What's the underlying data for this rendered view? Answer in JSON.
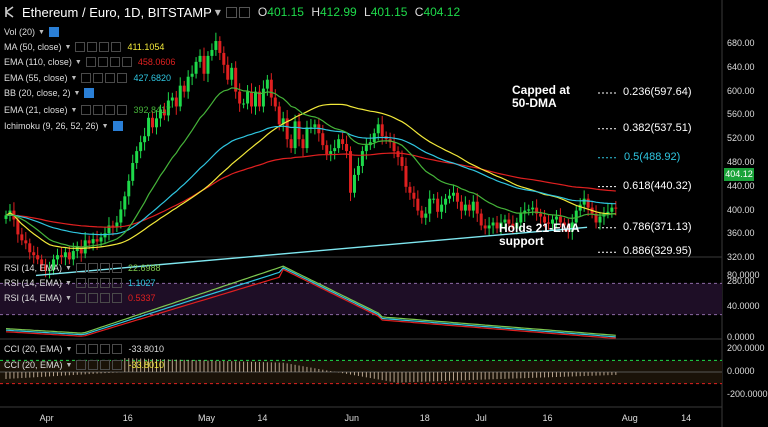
{
  "header": {
    "title": "Ethereum / Euro, 1D, BITSTAMP",
    "ohlc": [
      {
        "k": "O",
        "v": "401.15"
      },
      {
        "k": "H",
        "v": "412.99"
      },
      {
        "k": "L",
        "v": "401.15"
      },
      {
        "k": "C",
        "v": "404.12"
      }
    ]
  },
  "indicators": [
    {
      "label": "Vol (20)",
      "value": "",
      "color": "#dddddd",
      "toggle": true
    },
    {
      "label": "MA (50, close)",
      "value": "411.1054",
      "color": "#f2e93a",
      "toggle": false
    },
    {
      "label": "EMA (110, close)",
      "value": "458.0606",
      "color": "#e02020",
      "toggle": false
    },
    {
      "label": "EMA (55, close)",
      "value": "427.6820",
      "color": "#2fc6e0",
      "toggle": false
    },
    {
      "label": "BB (20, close, 2)",
      "value": "",
      "color": "#dddddd",
      "toggle": true
    },
    {
      "label": "EMA (21, close)",
      "value": "392.8417",
      "color": "#45b339",
      "toggle": false
    },
    {
      "label": "Ichimoku (9, 26, 52, 26)",
      "value": "",
      "color": "#dddddd",
      "toggle": true
    }
  ],
  "rsi_legend": [
    {
      "label": "RSI (14, EMA)",
      "value": "22.6988",
      "color": "#7ec850"
    },
    {
      "label": "RSI (14, EMA)",
      "value": "1.1027",
      "color": "#2fc6e0"
    },
    {
      "label": "RSI (14, EMA)",
      "value": "0.5337",
      "color": "#e02020"
    }
  ],
  "cci_legend": [
    {
      "label": "CCI (20, EMA)",
      "value": "-33.8010",
      "color": "#dddddd"
    },
    {
      "label": "CCI (20, EMA)",
      "value": "-33.8010",
      "color": "#f2e93a"
    }
  ],
  "last_price": "404.12",
  "annotations": {
    "capped_line1": "Capped at",
    "capped_line2": "50-DMA",
    "holds_line1": "Holds 21-EMA",
    "holds_line2": "support"
  },
  "chart_data": [
    {
      "type": "candlestick",
      "title": "Ethereum / Euro, 1D, BITSTAMP",
      "ylim": [
        260,
        700
      ],
      "yticks": [
        "680.00",
        "640.00",
        "600.00",
        "560.00",
        "520.00",
        "480.00",
        "440.00",
        "400.00",
        "360.00",
        "320.00",
        "280.00"
      ],
      "xticks": [
        "Apr",
        "16",
        "May",
        "14",
        "Jun",
        "18",
        "Jul",
        "16",
        "Aug",
        "14"
      ],
      "close": [
        392,
        400,
        385,
        360,
        350,
        345,
        330,
        325,
        318,
        308,
        300,
        300,
        318,
        325,
        322,
        330,
        318,
        332,
        340,
        328,
        350,
        345,
        352,
        348,
        355,
        362,
        375,
        372,
        380,
        402,
        424,
        450,
        480,
        500,
        515,
        525,
        556,
        540,
        555,
        570,
        560,
        585,
        590,
        575,
        610,
        600,
        625,
        630,
        650,
        660,
        630,
        660,
        670,
        685,
        665,
        645,
        620,
        640,
        600,
        580,
        580,
        600,
        575,
        600,
        575,
        605,
        620,
        590,
        575,
        545,
        555,
        520,
        505,
        550,
        520,
        505,
        540,
        540,
        545,
        530,
        510,
        495,
        500,
        505,
        520,
        512,
        500,
        430,
        460,
        475,
        500,
        510,
        515,
        530,
        545,
        525,
        520,
        515,
        500,
        490,
        475,
        440,
        430,
        420,
        400,
        388,
        395,
        420,
        420,
        398,
        410,
        420,
        425,
        430,
        415,
        400,
        410,
        400,
        415,
        395,
        375,
        370,
        375,
        380,
        370,
        380,
        385,
        378,
        370,
        380,
        395,
        400,
        402,
        405,
        395,
        390,
        380,
        378,
        385,
        390,
        380,
        375,
        365,
        380,
        400,
        410,
        420,
        405,
        395,
        380,
        390,
        395,
        398,
        405,
        404
      ],
      "volume_bars": "not read",
      "fib_levels": [
        {
          "label": "0.236(597.64)",
          "value": 597.64
        },
        {
          "label": "0.382(537.51)",
          "value": 537.51
        },
        {
          "label": "0.5(488.92)",
          "value": 488.92
        },
        {
          "label": "0.618(440.32)",
          "value": 440.32
        },
        {
          "label": "0.786(371.13)",
          "value": 371.13
        },
        {
          "label": "0.886(329.95)",
          "value": 329.95
        }
      ],
      "series": [
        {
          "name": "MA (50, close)",
          "last": 411.1054
        },
        {
          "name": "EMA (110, close)",
          "last": 458.0606
        },
        {
          "name": "EMA (55, close)",
          "last": 427.682
        },
        {
          "name": "EMA (21, close)",
          "last": 392.8417
        }
      ],
      "trendline": {
        "from": [
          0,
          291
        ],
        "to": [
          148,
          372
        ]
      }
    },
    {
      "type": "line",
      "panel": "RSI",
      "ylim": [
        0,
        100
      ],
      "yticks": [
        "80.0000",
        "40.0000",
        "0.0000"
      ],
      "levels": [
        70,
        30
      ]
    },
    {
      "type": "bar",
      "panel": "CCI",
      "ylim": [
        -250,
        250
      ],
      "yticks": [
        "200.0000",
        "0.0000",
        "-200.0000"
      ],
      "levels": [
        100,
        -100
      ]
    }
  ]
}
